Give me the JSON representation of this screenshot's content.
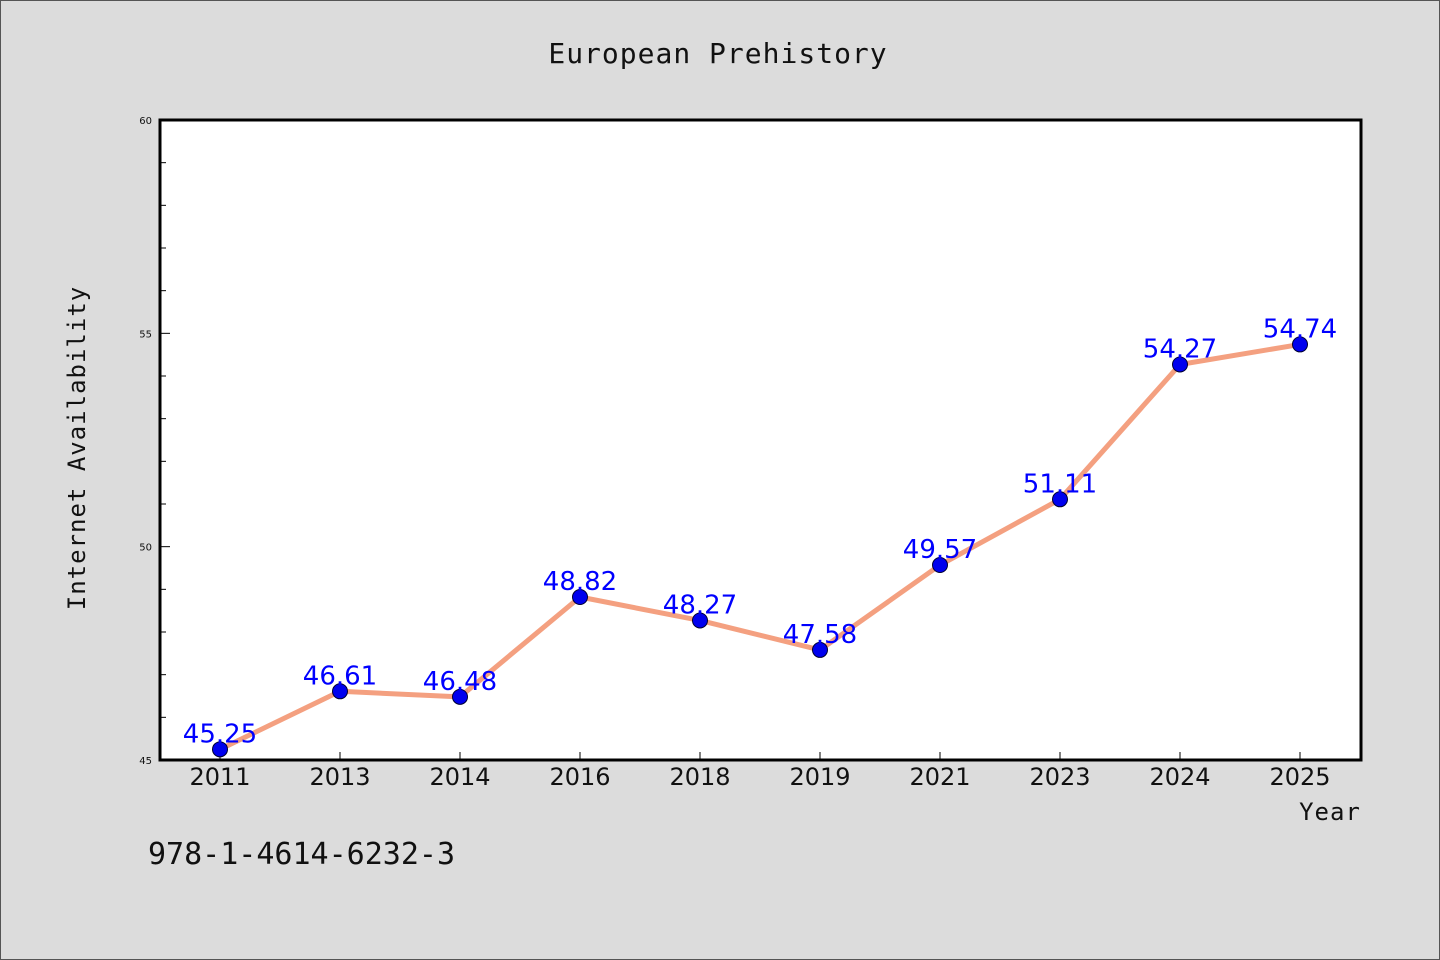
{
  "colors": {
    "background": "#dcdcdc",
    "plot_background": "#ffffff",
    "line": "#f4a080",
    "marker": "#0000ee",
    "data_label": "#0000ff"
  },
  "footer": {
    "isbn": "978-1-4614-6232-3"
  },
  "chart_data": {
    "type": "line",
    "title": "European Prehistory",
    "xlabel": "Year",
    "ylabel": "Internet Availability",
    "categories": [
      "2011",
      "2013",
      "2014",
      "2016",
      "2018",
      "2019",
      "2021",
      "2023",
      "2024",
      "2025"
    ],
    "series": [
      {
        "values": [
          45.25,
          46.61,
          46.48,
          48.82,
          48.27,
          47.58,
          49.57,
          51.11,
          54.27,
          54.74
        ]
      }
    ],
    "data_labels": [
      "45.25",
      "46.61",
      "46.48",
      "48.82",
      "48.27",
      "47.58",
      "49.57",
      "51.11",
      "54.27",
      "54.74"
    ],
    "ylim": [
      45,
      60
    ],
    "yticks": [
      "45",
      "50",
      "55",
      "60"
    ],
    "grid": false,
    "legend": "none"
  }
}
